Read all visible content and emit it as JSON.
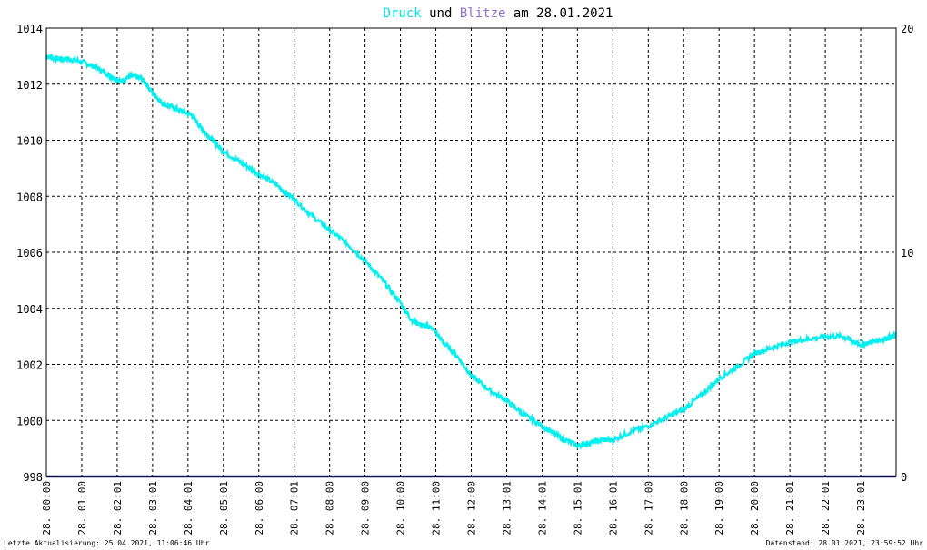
{
  "title": {
    "word1": "Druck",
    "word1_color": "#00e5e5",
    "word2": "und",
    "word3": "Blitze",
    "word3_color": "#8a6fd6",
    "word4": "am 28.01.2021"
  },
  "footer": {
    "left": "Letzte Aktualisierung: 25.04.2021, 11:06:46 Uhr",
    "right": "Datenstand: 28.01.2021, 23:59:52 Uhr"
  },
  "chart_data": {
    "type": "line",
    "title": "Druck und Blitze am 28.01.2021",
    "grid": true,
    "y_left": {
      "min": 998,
      "max": 1014,
      "ticks": [
        "998",
        "1000",
        "1002",
        "1004",
        "1006",
        "1008",
        "1010",
        "1012",
        "1014"
      ]
    },
    "y_right": {
      "min": 0,
      "max": 20,
      "ticks": [
        "0",
        "10",
        "20"
      ]
    },
    "x_range_hours": [
      0,
      24
    ],
    "x_ticks": [
      {
        "h": 0.0,
        "label": "28. 00:00"
      },
      {
        "h": 1.0,
        "label": "28. 01:00"
      },
      {
        "h": 2.0,
        "label": "28. 02:01"
      },
      {
        "h": 3.0,
        "label": "28. 03:01"
      },
      {
        "h": 4.0,
        "label": "28. 04:01"
      },
      {
        "h": 5.0,
        "label": "28. 05:01"
      },
      {
        "h": 6.0,
        "label": "28. 06:00"
      },
      {
        "h": 7.0,
        "label": "28. 07:01"
      },
      {
        "h": 8.0,
        "label": "28. 08:00"
      },
      {
        "h": 9.0,
        "label": "28. 09:00"
      },
      {
        "h": 10.0,
        "label": "28. 10:00"
      },
      {
        "h": 11.0,
        "label": "28. 11:00"
      },
      {
        "h": 12.0,
        "label": "28. 12:00"
      },
      {
        "h": 13.0,
        "label": "28. 13:01"
      },
      {
        "h": 14.0,
        "label": "28. 14:01"
      },
      {
        "h": 15.0,
        "label": "28. 15:01"
      },
      {
        "h": 16.0,
        "label": "28. 16:01"
      },
      {
        "h": 17.0,
        "label": "28. 17:00"
      },
      {
        "h": 18.0,
        "label": "28. 18:00"
      },
      {
        "h": 19.0,
        "label": "28. 19:00"
      },
      {
        "h": 20.0,
        "label": "28. 20:00"
      },
      {
        "h": 21.0,
        "label": "28. 21:01"
      },
      {
        "h": 22.0,
        "label": "28. 22:01"
      },
      {
        "h": 23.0,
        "label": "28. 23:01"
      }
    ],
    "series": [
      {
        "name": "Druck",
        "color": "#00f0f0",
        "axis": "left",
        "points": [
          [
            0.0,
            1013.0
          ],
          [
            0.3,
            1012.9
          ],
          [
            0.6,
            1012.9
          ],
          [
            1.0,
            1012.8
          ],
          [
            1.4,
            1012.6
          ],
          [
            1.8,
            1012.3
          ],
          [
            2.1,
            1012.1
          ],
          [
            2.4,
            1012.3
          ],
          [
            2.7,
            1012.2
          ],
          [
            3.0,
            1011.7
          ],
          [
            3.3,
            1011.3
          ],
          [
            3.7,
            1011.1
          ],
          [
            4.1,
            1010.9
          ],
          [
            4.4,
            1010.4
          ],
          [
            4.7,
            1010.0
          ],
          [
            5.0,
            1009.6
          ],
          [
            5.5,
            1009.2
          ],
          [
            6.0,
            1008.8
          ],
          [
            6.5,
            1008.4
          ],
          [
            7.0,
            1007.9
          ],
          [
            7.5,
            1007.3
          ],
          [
            8.0,
            1006.8
          ],
          [
            8.5,
            1006.3
          ],
          [
            9.0,
            1005.7
          ],
          [
            9.5,
            1005.0
          ],
          [
            10.0,
            1004.2
          ],
          [
            10.3,
            1003.6
          ],
          [
            10.6,
            1003.4
          ],
          [
            10.9,
            1003.3
          ],
          [
            11.2,
            1002.8
          ],
          [
            11.6,
            1002.3
          ],
          [
            12.0,
            1001.6
          ],
          [
            12.5,
            1001.1
          ],
          [
            13.0,
            1000.7
          ],
          [
            13.5,
            1000.2
          ],
          [
            14.0,
            999.8
          ],
          [
            14.5,
            999.4
          ],
          [
            15.0,
            999.1
          ],
          [
            15.3,
            999.2
          ],
          [
            15.7,
            999.3
          ],
          [
            16.0,
            999.3
          ],
          [
            16.5,
            999.6
          ],
          [
            17.0,
            999.8
          ],
          [
            17.5,
            1000.1
          ],
          [
            18.0,
            1000.4
          ],
          [
            18.5,
            1000.9
          ],
          [
            19.0,
            1001.5
          ],
          [
            19.5,
            1001.9
          ],
          [
            20.0,
            1002.4
          ],
          [
            20.5,
            1002.6
          ],
          [
            21.0,
            1002.8
          ],
          [
            21.5,
            1002.9
          ],
          [
            22.0,
            1003.0
          ],
          [
            22.5,
            1003.0
          ],
          [
            22.8,
            1002.8
          ],
          [
            23.0,
            1002.7
          ],
          [
            23.3,
            1002.8
          ],
          [
            23.6,
            1002.9
          ],
          [
            23.9,
            1003.0
          ],
          [
            24.0,
            1003.0
          ]
        ]
      },
      {
        "name": "Blitze",
        "color": "#1a1a7a",
        "axis": "right",
        "points": [
          [
            0,
            0
          ],
          [
            24,
            0
          ]
        ]
      }
    ],
    "colors": {
      "axis": "#000000",
      "grid": "#000000",
      "plot_bg": "#ffffff"
    }
  }
}
